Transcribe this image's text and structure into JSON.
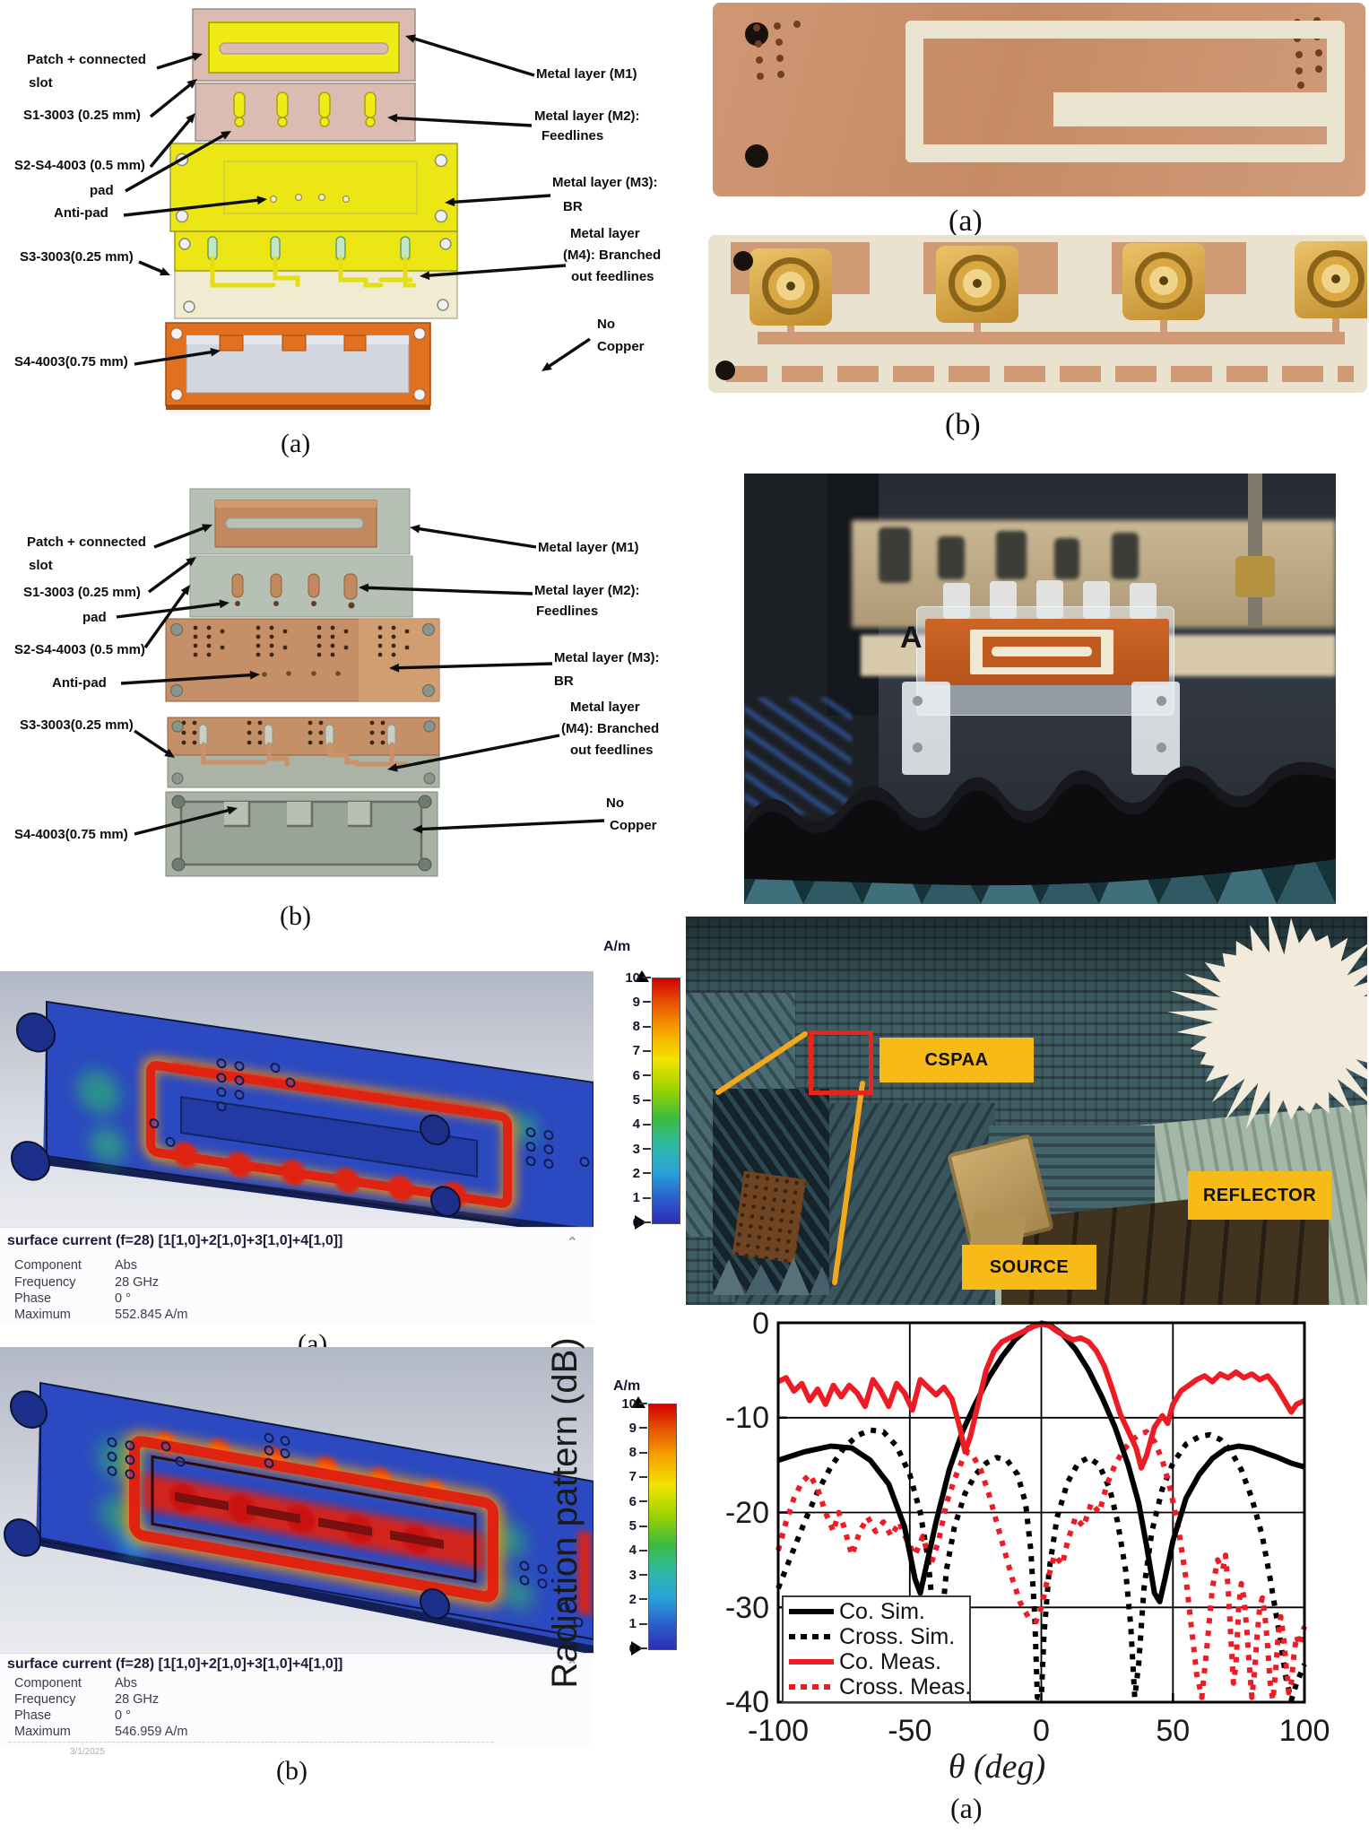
{
  "colors": {
    "annotation_yellow": "#F8BA16",
    "highlight_red": "#E8251D",
    "callout_yellow_line": "#F2A81D",
    "chart_red": "#ED1C24",
    "chart_black": "#000000",
    "cad_substrate_pink": "#DCBCB2",
    "cad_metal_yellow": "#F0EA16",
    "cad_no_copper_orange": "#E2711F",
    "copper": "#C59067"
  },
  "fig_cad": {
    "caption": "(a)",
    "labels": {
      "patch1": "Patch + connected",
      "patch2": "slot",
      "s1": "S1-3003 (0.25 mm)",
      "s2": "S2-S4-4003 (0.5 mm)",
      "pad": "pad",
      "antipad": "Anti-pad",
      "s3": "S3-3003(0.25 mm)",
      "s4": "S4-4003(0.75 mm)",
      "m1": "Metal layer (M1)",
      "m2a": "Metal layer (M2):",
      "m2b": "Feedlines",
      "m3a": "Metal layer (M3):",
      "m3b": "BR",
      "m4a": "Metal layer",
      "m4b": "(M4): Branched",
      "m4c": "out feedlines",
      "nc1": "No",
      "nc2": "Copper"
    }
  },
  "fig_fab": {
    "caption": "(b)",
    "labels": {
      "patch1": "Patch + connected",
      "patch2": "slot",
      "s1": "S1-3003 (0.25 mm)",
      "pad": "pad",
      "s2": "S2-S4-4003 (0.5 mm)",
      "antipad": "Anti-pad",
      "s3": "S3-3003(0.25 mm)",
      "s4": "S4-4003(0.75 mm)",
      "m1": "Metal layer (M1)",
      "m2a": "Metal layer (M2):",
      "m2b": "Feedlines",
      "m3a": "Metal layer (M3):",
      "m3b": "BR",
      "m4a": "Metal layer",
      "m4b": "(M4): Branched",
      "m4c": "out feedlines",
      "nc1": "No",
      "nc2": "Copper"
    }
  },
  "fig_pcb_front": {
    "caption": "(a)"
  },
  "fig_pcb_back": {
    "caption": "(b)"
  },
  "antenna": {
    "fixture_letter": "A"
  },
  "surface_current_a": {
    "title": "surface current (f=28) [1[1,0]+2[1,0]+3[1,0]+4[1,0]]",
    "rows": [
      {
        "label": "Component",
        "value": "Abs"
      },
      {
        "label": "Frequency",
        "value": "28 GHz"
      },
      {
        "label": "Phase",
        "value": "0 °"
      },
      {
        "label": "Maximum",
        "value": "552.845 A/m"
      }
    ],
    "caption": "(a)"
  },
  "surface_current_b": {
    "title": "surface current (f=28) [1[1,0]+2[1,0]+3[1,0]+4[1,0]]",
    "rows": [
      {
        "label": "Component",
        "value": "Abs"
      },
      {
        "label": "Frequency",
        "value": "28 GHz"
      },
      {
        "label": "Phase",
        "value": "0 °"
      },
      {
        "label": "Maximum",
        "value": "546.959 A/m"
      }
    ],
    "date": "3/1/2025",
    "caption": "(b)"
  },
  "colorbar": {
    "unit": "A/m",
    "ticks": [
      "10",
      "9",
      "8",
      "7",
      "6",
      "5",
      "4",
      "3",
      "2",
      "1",
      "0"
    ]
  },
  "chamber": {
    "cspaa": "CSPAA",
    "reflector": "REFLECTOR",
    "source": "SOURCE"
  },
  "chart_data": {
    "type": "line",
    "title": "",
    "xlabel": "θ  (deg)",
    "ylabel": "Radiation pattern (dB)",
    "xlim": [
      -100,
      100
    ],
    "ylim": [
      -40,
      0
    ],
    "xticks": [
      -100,
      -50,
      0,
      50,
      100
    ],
    "yticks": [
      0,
      -10,
      -20,
      -30,
      -40
    ],
    "xtick_labels": [
      "-100",
      "-50",
      "0",
      "50",
      "100"
    ],
    "ytick_labels": [
      "0",
      "-10",
      "-20",
      "-30",
      "-40"
    ],
    "grid": true,
    "legend_position": "bottom-left",
    "caption": "(a)",
    "series": [
      {
        "name": "Co. Sim.",
        "color": "#000000",
        "style": "solid",
        "points": [
          [
            -100,
            -14.5
          ],
          [
            -90,
            -13.6
          ],
          [
            -80,
            -13
          ],
          [
            -72,
            -13.2
          ],
          [
            -65,
            -14.5
          ],
          [
            -58,
            -17
          ],
          [
            -52,
            -21.5
          ],
          [
            -48,
            -27
          ],
          [
            -46,
            -28.5
          ],
          [
            -44,
            -26
          ],
          [
            -40,
            -21
          ],
          [
            -35,
            -15.5
          ],
          [
            -30,
            -11.5
          ],
          [
            -25,
            -8.5
          ],
          [
            -20,
            -5.8
          ],
          [
            -15,
            -3.6
          ],
          [
            -10,
            -1.8
          ],
          [
            -5,
            -0.6
          ],
          [
            0,
            -0.05
          ],
          [
            3,
            -0.2
          ],
          [
            8,
            -1.2
          ],
          [
            13,
            -2.8
          ],
          [
            18,
            -5
          ],
          [
            23,
            -7.8
          ],
          [
            28,
            -11
          ],
          [
            33,
            -15
          ],
          [
            37,
            -19
          ],
          [
            40,
            -23.5
          ],
          [
            43,
            -28.5
          ],
          [
            45,
            -29.4
          ],
          [
            47,
            -27
          ],
          [
            50,
            -23
          ],
          [
            55,
            -18.5
          ],
          [
            60,
            -16
          ],
          [
            65,
            -14.3
          ],
          [
            70,
            -13.3
          ],
          [
            75,
            -13
          ],
          [
            80,
            -13.2
          ],
          [
            85,
            -13.7
          ],
          [
            90,
            -14.2
          ],
          [
            95,
            -14.8
          ],
          [
            100,
            -15.2
          ]
        ]
      },
      {
        "name": "Cross. Sim.",
        "color": "#000000",
        "style": "dotted",
        "points": [
          [
            -100,
            -28
          ],
          [
            -95,
            -24.5
          ],
          [
            -90,
            -21
          ],
          [
            -85,
            -17.8
          ],
          [
            -80,
            -15.2
          ],
          [
            -75,
            -13.2
          ],
          [
            -70,
            -11.9
          ],
          [
            -65,
            -11.3
          ],
          [
            -60,
            -11.5
          ],
          [
            -55,
            -13
          ],
          [
            -50,
            -16
          ],
          [
            -46,
            -20
          ],
          [
            -43,
            -25
          ],
          [
            -41,
            -31
          ],
          [
            -39.5,
            -38
          ],
          [
            -38,
            -32
          ],
          [
            -36,
            -26
          ],
          [
            -33,
            -21.5
          ],
          [
            -29,
            -18
          ],
          [
            -25,
            -16
          ],
          [
            -21,
            -14.8
          ],
          [
            -17,
            -14.2
          ],
          [
            -13,
            -14.5
          ],
          [
            -9,
            -16
          ],
          [
            -6,
            -19
          ],
          [
            -4,
            -24
          ],
          [
            -2.5,
            -31
          ],
          [
            -1.5,
            -39.5
          ],
          [
            0,
            -39.5
          ],
          [
            1,
            -33
          ],
          [
            3,
            -26
          ],
          [
            6,
            -20.5
          ],
          [
            10,
            -16.8
          ],
          [
            14,
            -14.8
          ],
          [
            18,
            -14.2
          ],
          [
            22,
            -15
          ],
          [
            26,
            -17.5
          ],
          [
            29,
            -21
          ],
          [
            32,
            -26
          ],
          [
            34,
            -32
          ],
          [
            35.5,
            -39.5
          ],
          [
            37,
            -36
          ],
          [
            39,
            -28
          ],
          [
            42,
            -22
          ],
          [
            46,
            -17.5
          ],
          [
            50,
            -14.8
          ],
          [
            55,
            -12.8
          ],
          [
            60,
            -12
          ],
          [
            64,
            -11.8
          ],
          [
            68,
            -12.3
          ],
          [
            72,
            -13.5
          ],
          [
            76,
            -15.5
          ],
          [
            80,
            -18.5
          ],
          [
            84,
            -22.5
          ],
          [
            87,
            -27
          ],
          [
            90,
            -32
          ],
          [
            93,
            -37.5
          ],
          [
            95,
            -39.8
          ],
          [
            97,
            -38
          ],
          [
            100,
            -36
          ]
        ]
      },
      {
        "name": "Co. Meas.",
        "color": "#ED1C24",
        "style": "solid",
        "points": [
          [
            -100,
            -6.2
          ],
          [
            -97,
            -5.8
          ],
          [
            -94,
            -7.2
          ],
          [
            -91,
            -6.4
          ],
          [
            -88,
            -8.2
          ],
          [
            -85,
            -7
          ],
          [
            -82,
            -8.6
          ],
          [
            -79,
            -6.6
          ],
          [
            -76,
            -7.8
          ],
          [
            -73,
            -6.6
          ],
          [
            -70,
            -7.4
          ],
          [
            -67,
            -8.8
          ],
          [
            -64,
            -6
          ],
          [
            -61,
            -7.2
          ],
          [
            -58,
            -8.8
          ],
          [
            -55,
            -6.4
          ],
          [
            -52,
            -7.4
          ],
          [
            -49,
            -9.2
          ],
          [
            -46,
            -6
          ],
          [
            -43,
            -6.8
          ],
          [
            -40,
            -7.6
          ],
          [
            -37,
            -6.8
          ],
          [
            -34,
            -8
          ],
          [
            -31,
            -11
          ],
          [
            -29,
            -13.6
          ],
          [
            -27,
            -12
          ],
          [
            -24,
            -8.5
          ],
          [
            -21,
            -5
          ],
          [
            -18,
            -3
          ],
          [
            -15,
            -2
          ],
          [
            -12,
            -1.6
          ],
          [
            -9,
            -1.2
          ],
          [
            -6,
            -0.8
          ],
          [
            -3,
            -0.4
          ],
          [
            0,
            -0.1
          ],
          [
            3,
            -0.3
          ],
          [
            6,
            -0.9
          ],
          [
            9,
            -1.4
          ],
          [
            12,
            -1.8
          ],
          [
            15,
            -1.6
          ],
          [
            18,
            -2
          ],
          [
            21,
            -3
          ],
          [
            24,
            -4.6
          ],
          [
            27,
            -7
          ],
          [
            30,
            -9.6
          ],
          [
            33,
            -11.4
          ],
          [
            36,
            -13.2
          ],
          [
            38,
            -15.3
          ],
          [
            40,
            -14
          ],
          [
            43,
            -11
          ],
          [
            46,
            -9.8
          ],
          [
            48,
            -10.6
          ],
          [
            50,
            -8.6
          ],
          [
            53,
            -7.2
          ],
          [
            56,
            -6.6
          ],
          [
            59,
            -6
          ],
          [
            62,
            -5.6
          ],
          [
            65,
            -6.2
          ],
          [
            68,
            -5.4
          ],
          [
            71,
            -5.8
          ],
          [
            74,
            -5.2
          ],
          [
            77,
            -5.8
          ],
          [
            80,
            -5.4
          ],
          [
            83,
            -6
          ],
          [
            86,
            -5.6
          ],
          [
            89,
            -6.6
          ],
          [
            92,
            -8
          ],
          [
            95,
            -9.4
          ],
          [
            97,
            -8.6
          ],
          [
            100,
            -8.2
          ]
        ]
      },
      {
        "name": "Cross. Meas.",
        "color": "#ED1C24",
        "style": "dotted",
        "points": [
          [
            -100,
            -24
          ],
          [
            -97,
            -21
          ],
          [
            -94,
            -18.5
          ],
          [
            -91,
            -16.8
          ],
          [
            -88,
            -16
          ],
          [
            -85,
            -17.5
          ],
          [
            -82,
            -20
          ],
          [
            -79,
            -22
          ],
          [
            -77,
            -20
          ],
          [
            -75,
            -21.5
          ],
          [
            -72,
            -24.5
          ],
          [
            -69,
            -22
          ],
          [
            -66,
            -20.5
          ],
          [
            -63,
            -22
          ],
          [
            -60,
            -21
          ],
          [
            -57,
            -22.5
          ],
          [
            -54,
            -21
          ],
          [
            -51,
            -23
          ],
          [
            -48,
            -24.5
          ],
          [
            -45,
            -22.5
          ],
          [
            -42,
            -25.5
          ],
          [
            -39,
            -23
          ],
          [
            -36,
            -19
          ],
          [
            -33,
            -16.5
          ],
          [
            -30,
            -14.5
          ],
          [
            -28,
            -13.6
          ],
          [
            -26,
            -14
          ],
          [
            -23,
            -15.5
          ],
          [
            -20,
            -18
          ],
          [
            -17,
            -21
          ],
          [
            -14,
            -24
          ],
          [
            -11,
            -27
          ],
          [
            -8,
            -29.5
          ],
          [
            -5,
            -31
          ],
          [
            -2,
            -31.5
          ],
          [
            0,
            -30
          ],
          [
            2,
            -27.5
          ],
          [
            5,
            -24.5
          ],
          [
            8,
            -25.5
          ],
          [
            10,
            -23
          ],
          [
            13,
            -20.5
          ],
          [
            16,
            -21.5
          ],
          [
            19,
            -19
          ],
          [
            22,
            -20
          ],
          [
            25,
            -17
          ],
          [
            28,
            -15
          ],
          [
            31,
            -13.5
          ],
          [
            34,
            -12.5
          ],
          [
            37,
            -11.8
          ],
          [
            40,
            -11.5
          ],
          [
            43,
            -12.5
          ],
          [
            46,
            -14.5
          ],
          [
            49,
            -17.5
          ],
          [
            52,
            -21.5
          ],
          [
            55,
            -27
          ],
          [
            57,
            -32
          ],
          [
            59,
            -37
          ],
          [
            61,
            -39.5
          ],
          [
            63,
            -34
          ],
          [
            65,
            -28
          ],
          [
            67,
            -25
          ],
          [
            69,
            -26
          ],
          [
            70,
            -24.5
          ],
          [
            71,
            -28
          ],
          [
            72,
            -33
          ],
          [
            73,
            -38
          ],
          [
            74,
            -36
          ],
          [
            75,
            -30
          ],
          [
            76,
            -27.5
          ],
          [
            77,
            -29
          ],
          [
            78,
            -32
          ],
          [
            79,
            -36
          ],
          [
            80,
            -39.5
          ],
          [
            81,
            -37
          ],
          [
            82,
            -33
          ],
          [
            83,
            -30
          ],
          [
            84,
            -29
          ],
          [
            85,
            -31
          ],
          [
            86,
            -34
          ],
          [
            87,
            -38
          ],
          [
            88,
            -39.8
          ],
          [
            89,
            -37
          ],
          [
            90,
            -33
          ],
          [
            91,
            -31
          ],
          [
            92,
            -33
          ],
          [
            93,
            -36
          ],
          [
            94,
            -39
          ],
          [
            95,
            -38
          ],
          [
            96,
            -35
          ],
          [
            97,
            -33
          ],
          [
            98,
            -34
          ],
          [
            99,
            -33
          ],
          [
            100,
            -32
          ]
        ]
      }
    ]
  }
}
